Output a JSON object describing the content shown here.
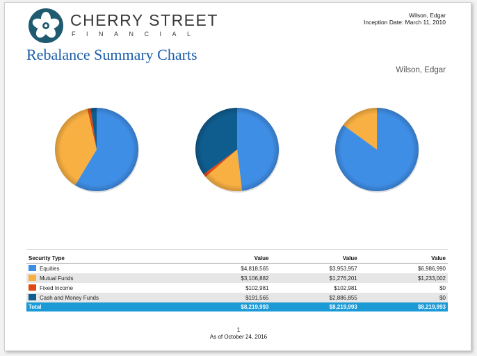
{
  "brand": {
    "name": "CHERRY STREET",
    "sub": "FINANCIAL"
  },
  "header": {
    "client": "Wilson, Edgar",
    "inception": "Inception Date: March 11, 2010"
  },
  "report": {
    "title": "Rebalance Summary Charts",
    "client_name": "Wilson, Edgar"
  },
  "colors": {
    "equities": "#3f8ee6",
    "mutual_funds": "#f9b042",
    "fixed_income": "#e04a12",
    "cash": "#0f5c8f",
    "total_row": "#1c9ad6",
    "title": "#1c5ea8"
  },
  "chart_data": [
    {
      "type": "pie",
      "title": "",
      "categories": [
        "Equities",
        "Mutual Funds",
        "Fixed Income",
        "Cash and Money Funds"
      ],
      "values": [
        4818565,
        3106882,
        102981,
        191565
      ]
    },
    {
      "type": "pie",
      "title": "",
      "categories": [
        "Equities",
        "Mutual Funds",
        "Fixed Income",
        "Cash and Money Funds"
      ],
      "values": [
        3953957,
        1276201,
        102981,
        2886855
      ]
    },
    {
      "type": "pie",
      "title": "",
      "categories": [
        "Equities",
        "Mutual Funds",
        "Fixed Income",
        "Cash and Money Funds"
      ],
      "values": [
        6986990,
        1233002,
        0,
        0
      ]
    }
  ],
  "table": {
    "headers": [
      "Security Type",
      "Value",
      "Value",
      "Value"
    ],
    "rows": [
      {
        "label": "Equities",
        "values": [
          "$4,818,565",
          "$3,953,957",
          "$6,986,990"
        ]
      },
      {
        "label": "Mutual Funds",
        "values": [
          "$3,106,882",
          "$1,276,201",
          "$1,233,002"
        ]
      },
      {
        "label": "Fixed Income",
        "values": [
          "$102,981",
          "$102,981",
          "$0"
        ]
      },
      {
        "label": "Cash and Money Funds",
        "values": [
          "$191,565",
          "$2,886,855",
          "$0"
        ]
      }
    ],
    "total": {
      "label": "Total",
      "values": [
        "$8,219,993",
        "$8,219,993",
        "$8,219,993"
      ]
    }
  },
  "footer": {
    "page": "1",
    "as_of": "As of October 24, 2016"
  }
}
